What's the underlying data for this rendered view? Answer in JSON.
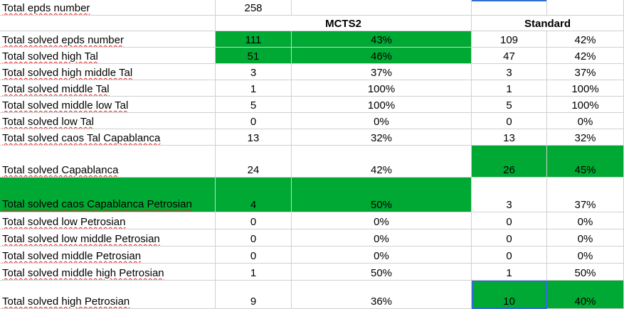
{
  "sheet": {
    "top": {
      "label": "Total epds number",
      "value": "258"
    },
    "headers": {
      "mcts2": "MCTS2",
      "standard": "Standard"
    },
    "rows": [
      {
        "label": "Total solved epds number",
        "mcts_count": "111",
        "mcts_pct": "43%",
        "std_count": "109",
        "std_pct": "42%",
        "mcts_hl": true,
        "std_hl": false
      },
      {
        "label": "Total solved high Tal",
        "mcts_count": "51",
        "mcts_pct": "46%",
        "std_count": "47",
        "std_pct": "42%",
        "mcts_hl": true,
        "std_hl": false
      },
      {
        "label": "Total solved high middle Tal",
        "mcts_count": "3",
        "mcts_pct": "37%",
        "std_count": "3",
        "std_pct": "37%",
        "mcts_hl": false,
        "std_hl": false
      },
      {
        "label": "Total solved middle Tal",
        "mcts_count": "1",
        "mcts_pct": "100%",
        "std_count": "1",
        "std_pct": "100%",
        "mcts_hl": false,
        "std_hl": false
      },
      {
        "label": "Total solved middle low Tal",
        "mcts_count": "5",
        "mcts_pct": "100%",
        "std_count": "5",
        "std_pct": "100%",
        "mcts_hl": false,
        "std_hl": false
      },
      {
        "label": "Total solved low Tal",
        "mcts_count": "0",
        "mcts_pct": "0%",
        "std_count": "0",
        "std_pct": "0%",
        "mcts_hl": false,
        "std_hl": false
      },
      {
        "label": "Total solved caos Tal Capablanca",
        "mcts_count": "13",
        "mcts_pct": "32%",
        "std_count": "13",
        "std_pct": "32%",
        "mcts_hl": false,
        "std_hl": false
      },
      {
        "label": "Total solved Capablanca",
        "mcts_count": "24",
        "mcts_pct": "42%",
        "std_count": "26",
        "std_pct": "45%",
        "mcts_hl": false,
        "std_hl": true
      },
      {
        "label": "Total solved caos Capablanca Petrosian",
        "mcts_count": "4",
        "mcts_pct": "50%",
        "std_count": "3",
        "std_pct": "37%",
        "mcts_hl": true,
        "std_hl": false
      },
      {
        "label": "Total solved low Petrosian",
        "mcts_count": "0",
        "mcts_pct": "0%",
        "std_count": "0",
        "std_pct": "0%",
        "mcts_hl": false,
        "std_hl": false
      },
      {
        "label": "Total solved low middle Petrosian",
        "mcts_count": "0",
        "mcts_pct": "0%",
        "std_count": "0",
        "std_pct": "0%",
        "mcts_hl": false,
        "std_hl": false
      },
      {
        "label": "Total solved middle Petrosian",
        "mcts_count": "0",
        "mcts_pct": "0%",
        "std_count": "0",
        "std_pct": "0%",
        "mcts_hl": false,
        "std_hl": false
      },
      {
        "label": "Total solved middle high Petrosian",
        "mcts_count": "1",
        "mcts_pct": "50%",
        "std_count": "1",
        "std_pct": "50%",
        "mcts_hl": false,
        "std_hl": false
      },
      {
        "label": "Total solved high Petrosian",
        "mcts_count": "9",
        "mcts_pct": "36%",
        "std_count": "10",
        "std_pct": "40%",
        "mcts_hl": false,
        "std_hl": true
      }
    ]
  },
  "colors": {
    "highlight": "#00a933",
    "selection": "#2f6fd3"
  }
}
